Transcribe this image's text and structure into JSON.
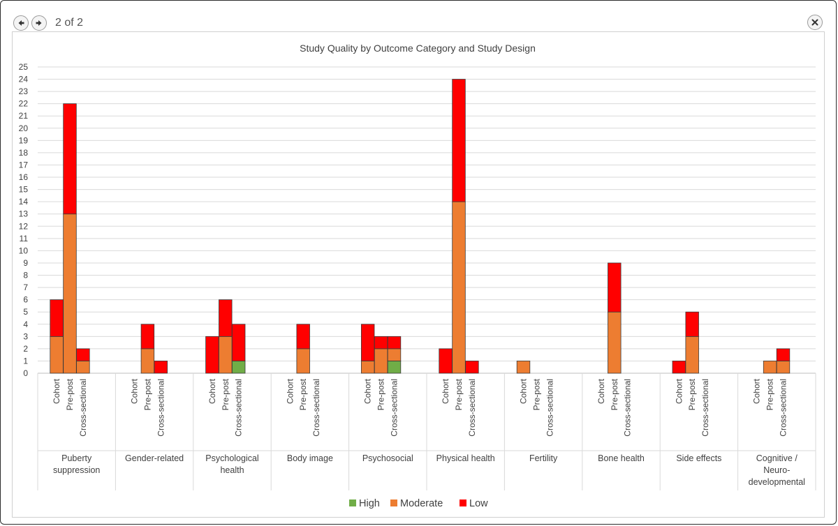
{
  "viewer": {
    "counter_text": "2 of 2",
    "prev_icon": "arrow-left-icon",
    "next_icon": "arrow-right-icon",
    "close_icon": "close-icon"
  },
  "chart_data": {
    "type": "bar",
    "stacked": true,
    "title": "Study Quality by Outcome Category and Study Design",
    "ylim": [
      0,
      25
    ],
    "yticks": [
      0,
      1,
      2,
      3,
      4,
      5,
      6,
      7,
      8,
      9,
      10,
      11,
      12,
      13,
      14,
      15,
      16,
      17,
      18,
      19,
      20,
      21,
      22,
      23,
      24,
      25
    ],
    "grid": true,
    "legend_position": "bottom",
    "designs": [
      "Cohort",
      "Pre-post",
      "Cross-sectional"
    ],
    "categories": [
      {
        "label": [
          "Puberty",
          "suppression"
        ]
      },
      {
        "label": [
          "Gender-related"
        ]
      },
      {
        "label": [
          "Psychological",
          "health"
        ]
      },
      {
        "label": [
          "Body image"
        ]
      },
      {
        "label": [
          "Psychosocial"
        ]
      },
      {
        "label": [
          "Physical health"
        ]
      },
      {
        "label": [
          "Fertility"
        ]
      },
      {
        "label": [
          "Bone health"
        ]
      },
      {
        "label": [
          "Side effects"
        ]
      },
      {
        "label": [
          "Cognitive /",
          "Neuro-",
          "developmental"
        ]
      }
    ],
    "series": [
      {
        "name": "High",
        "color": "#70ad47",
        "values": [
          [
            0,
            0,
            0
          ],
          [
            0,
            0,
            0
          ],
          [
            0,
            0,
            1
          ],
          [
            0,
            0,
            0
          ],
          [
            0,
            0,
            1
          ],
          [
            0,
            0,
            0
          ],
          [
            0,
            0,
            0
          ],
          [
            0,
            0,
            0
          ],
          [
            0,
            0,
            0
          ],
          [
            0,
            0,
            0
          ]
        ]
      },
      {
        "name": "Moderate",
        "color": "#ed7d31",
        "values": [
          [
            3,
            13,
            1
          ],
          [
            0,
            2,
            0
          ],
          [
            0,
            3,
            0
          ],
          [
            0,
            2,
            0
          ],
          [
            1,
            2,
            1
          ],
          [
            0,
            14,
            0
          ],
          [
            1,
            0,
            0
          ],
          [
            0,
            5,
            0
          ],
          [
            0,
            3,
            0
          ],
          [
            0,
            1,
            1
          ]
        ]
      },
      {
        "name": "Low",
        "color": "#ff0000",
        "values": [
          [
            3,
            9,
            1
          ],
          [
            0,
            2,
            1
          ],
          [
            3,
            3,
            3
          ],
          [
            0,
            2,
            0
          ],
          [
            3,
            1,
            1
          ],
          [
            2,
            10,
            1
          ],
          [
            0,
            0,
            0
          ],
          [
            0,
            4,
            0
          ],
          [
            1,
            2,
            0
          ],
          [
            0,
            0,
            1
          ]
        ]
      }
    ]
  }
}
